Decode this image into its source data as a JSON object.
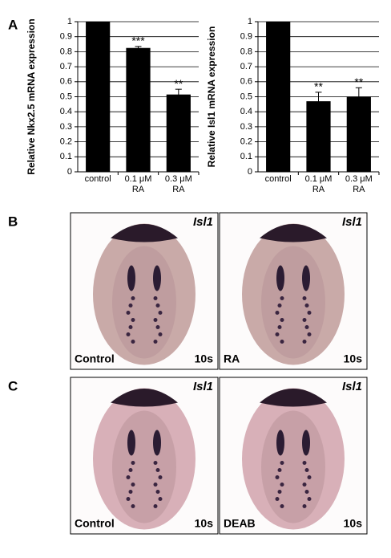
{
  "panel_a_label": "A",
  "chart_data": [
    {
      "type": "bar",
      "ylabel": "Relative Nkx2.5 mRNA expression",
      "categories": [
        "control",
        "0.1 μM RA",
        "0.3 μM RA"
      ],
      "values": [
        1,
        0.825,
        0.515
      ],
      "errors": [
        0,
        0.01,
        0.035
      ],
      "significance": [
        null,
        "***",
        "**"
      ],
      "color": "#000000",
      "ylim": [
        0,
        1
      ],
      "yticks": [
        0,
        0.1,
        0.2,
        0.3,
        0.4,
        0.5,
        0.6,
        0.7,
        0.8,
        0.9,
        1
      ],
      "grid": true
    },
    {
      "type": "bar",
      "ylabel": "Relative Isl1 mRNA expression",
      "categories": [
        "control",
        "0.1 μM RA",
        "0.3 μM RA"
      ],
      "values": [
        1,
        0.47,
        0.5
      ],
      "errors": [
        0,
        0.06,
        0.06
      ],
      "significance": [
        null,
        "**",
        "**"
      ],
      "color": "#000000",
      "ylim": [
        0,
        1
      ],
      "yticks": [
        0,
        0.1,
        0.2,
        0.3,
        0.4,
        0.5,
        0.6,
        0.7,
        0.8,
        0.9,
        1
      ],
      "grid": true
    }
  ],
  "panels": [
    {
      "label": "B",
      "images": [
        {
          "gene": "Isl1",
          "condition": "Control",
          "stage": "10s"
        },
        {
          "gene": "Isl1",
          "condition": "RA",
          "stage": "10s"
        }
      ]
    },
    {
      "label": "C",
      "images": [
        {
          "gene": "Isl1",
          "condition": "Control",
          "stage": "10s"
        },
        {
          "gene": "Isl1",
          "condition": "DEAB",
          "stage": "10s"
        }
      ]
    }
  ]
}
